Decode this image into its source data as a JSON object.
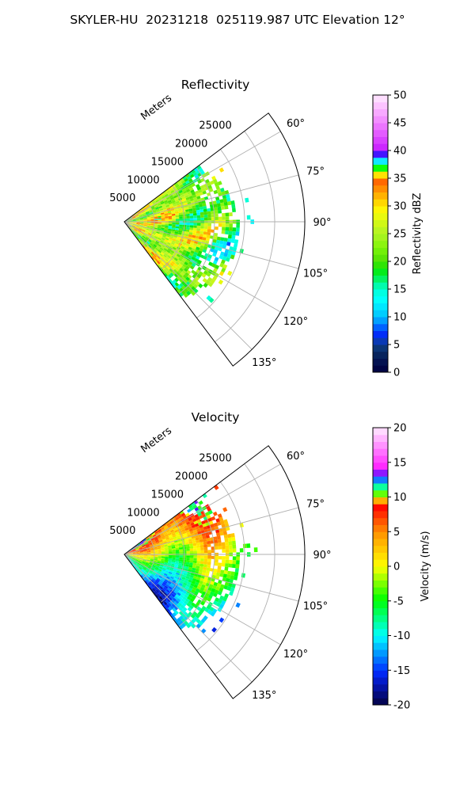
{
  "figure_title": "SKYLER-HU  20231218  025119.987 UTC Elevation 12°",
  "chart_data": [
    {
      "type": "heatmap",
      "title": "Reflectivity",
      "radial_label": "Meters",
      "radial_ticks": [
        "5000",
        "10000",
        "15000",
        "20000",
        "25000"
      ],
      "radial_values": [
        5000,
        10000,
        15000,
        20000,
        25000
      ],
      "azimuth_ticks": [
        "60°",
        "75°",
        "90°",
        "105°",
        "120°",
        "135°"
      ],
      "azimuth_values": [
        60,
        75,
        90,
        105,
        120,
        135
      ],
      "azimuth_range": [
        53,
        143
      ],
      "range_max": 30000,
      "grid": true,
      "colorbar": {
        "label": "Reflectivity dBZ",
        "range": [
          0,
          50
        ],
        "ticks": [
          "0",
          "5",
          "10",
          "15",
          "20",
          "25",
          "30",
          "35",
          "40",
          "45",
          "50"
        ],
        "tick_values": [
          0,
          5,
          10,
          15,
          20,
          25,
          30,
          35,
          40,
          45,
          50
        ]
      }
    },
    {
      "type": "heatmap",
      "title": "Velocity",
      "radial_label": "Meters",
      "radial_ticks": [
        "5000",
        "10000",
        "15000",
        "20000",
        "25000"
      ],
      "radial_values": [
        5000,
        10000,
        15000,
        20000,
        25000
      ],
      "azimuth_ticks": [
        "60°",
        "75°",
        "90°",
        "105°",
        "120°",
        "135°"
      ],
      "azimuth_values": [
        60,
        75,
        90,
        105,
        120,
        135
      ],
      "azimuth_range": [
        53,
        143
      ],
      "range_max": 30000,
      "grid": true,
      "colorbar": {
        "label": "Velocity (m/s)",
        "range": [
          -20,
          20
        ],
        "ticks": [
          "-20",
          "-15",
          "-10",
          "-5",
          "0",
          "5",
          "10",
          "15",
          "20"
        ],
        "tick_values": [
          -20,
          -15,
          -10,
          -5,
          0,
          5,
          10,
          15,
          20
        ]
      }
    }
  ]
}
